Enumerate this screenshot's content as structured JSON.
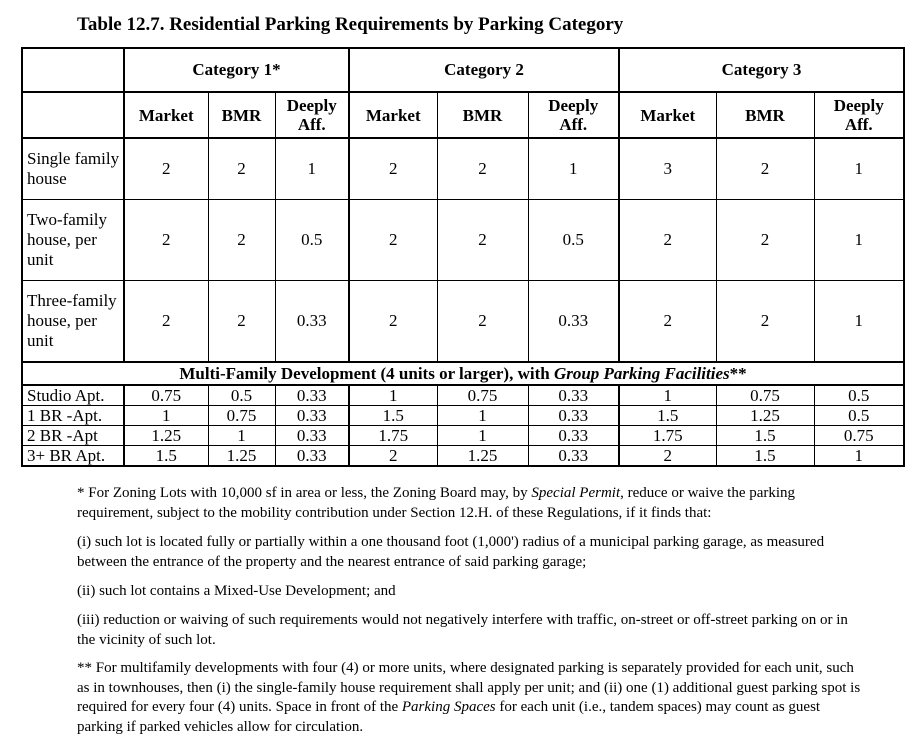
{
  "title": "Table 12.7. Residential Parking Requirements by Parking Category",
  "categories": [
    "Category 1*",
    "Category 2",
    "Category 3"
  ],
  "sub_headers": [
    "Market",
    "BMR",
    "Deeply\nAff."
  ],
  "rows": [
    {
      "label": "Single family house",
      "values": [
        "2",
        "2",
        "1",
        "2",
        "2",
        "1",
        "3",
        "2",
        "1"
      ]
    },
    {
      "label": "Two-family house, per unit",
      "values": [
        "2",
        "2",
        "0.5",
        "2",
        "2",
        "0.5",
        "2",
        "2",
        "1"
      ]
    },
    {
      "label": "Three-family house, per unit",
      "values": [
        "2",
        "2",
        "0.33",
        "2",
        "2",
        "0.33",
        "2",
        "2",
        "1"
      ]
    }
  ],
  "multifamily_header": {
    "prefix": "Multi-Family Development (4 units or larger), with ",
    "italic": "Group Parking Facilities",
    "suffix": "**"
  },
  "apt_rows": [
    {
      "label": "Studio Apt.",
      "values": [
        "0.75",
        "0.5",
        "0.33",
        "1",
        "0.75",
        "0.33",
        "1",
        "0.75",
        "0.5"
      ]
    },
    {
      "label": "1 BR -Apt.",
      "values": [
        "1",
        "0.75",
        "0.33",
        "1.5",
        "1",
        "0.33",
        "1.5",
        "1.25",
        "0.5"
      ]
    },
    {
      "label": "2 BR -Apt",
      "values": [
        "1.25",
        "1",
        "0.33",
        "1.75",
        "1",
        "0.33",
        "1.75",
        "1.5",
        "0.75"
      ]
    },
    {
      "label": "3+ BR Apt.",
      "values": [
        "1.5",
        "1.25",
        "0.33",
        "2",
        "1.25",
        "0.33",
        "2",
        "1.5",
        "1"
      ]
    }
  ],
  "notes": {
    "n1_a": "* For Zoning Lots with 10,000 sf in area or less, the Zoning Board may, by ",
    "n1_i": "Special Permit",
    "n1_b": ", reduce or waive the parking requirement, subject to the mobility contribution under Section 12.H. of these Regulations, if it finds that:",
    "n2": "(i) such lot is located fully or partially within a one thousand foot (1,000') radius of a municipal parking garage, as measured between the entrance of the property and the nearest entrance of said parking garage;",
    "n3": "(ii) such lot contains a Mixed-Use Development; and",
    "n4": "(iii) reduction or waiving of such requirements would not negatively interfere with traffic, on-street or off-street parking on or in the vicinity of such lot.",
    "n5_a": "** For multifamily developments with four (4) or more units, where designated parking is separately provided for each unit, such as in townhouses, then (i) the single-family house requirement shall apply per unit; and (ii) one (1) additional guest parking spot is required for every four (4) units. Space in front of the ",
    "n5_i": "Parking Spaces",
    "n5_b": " for each unit (i.e., tandem spaces) may count as guest parking if parked vehicles allow for circulation."
  }
}
